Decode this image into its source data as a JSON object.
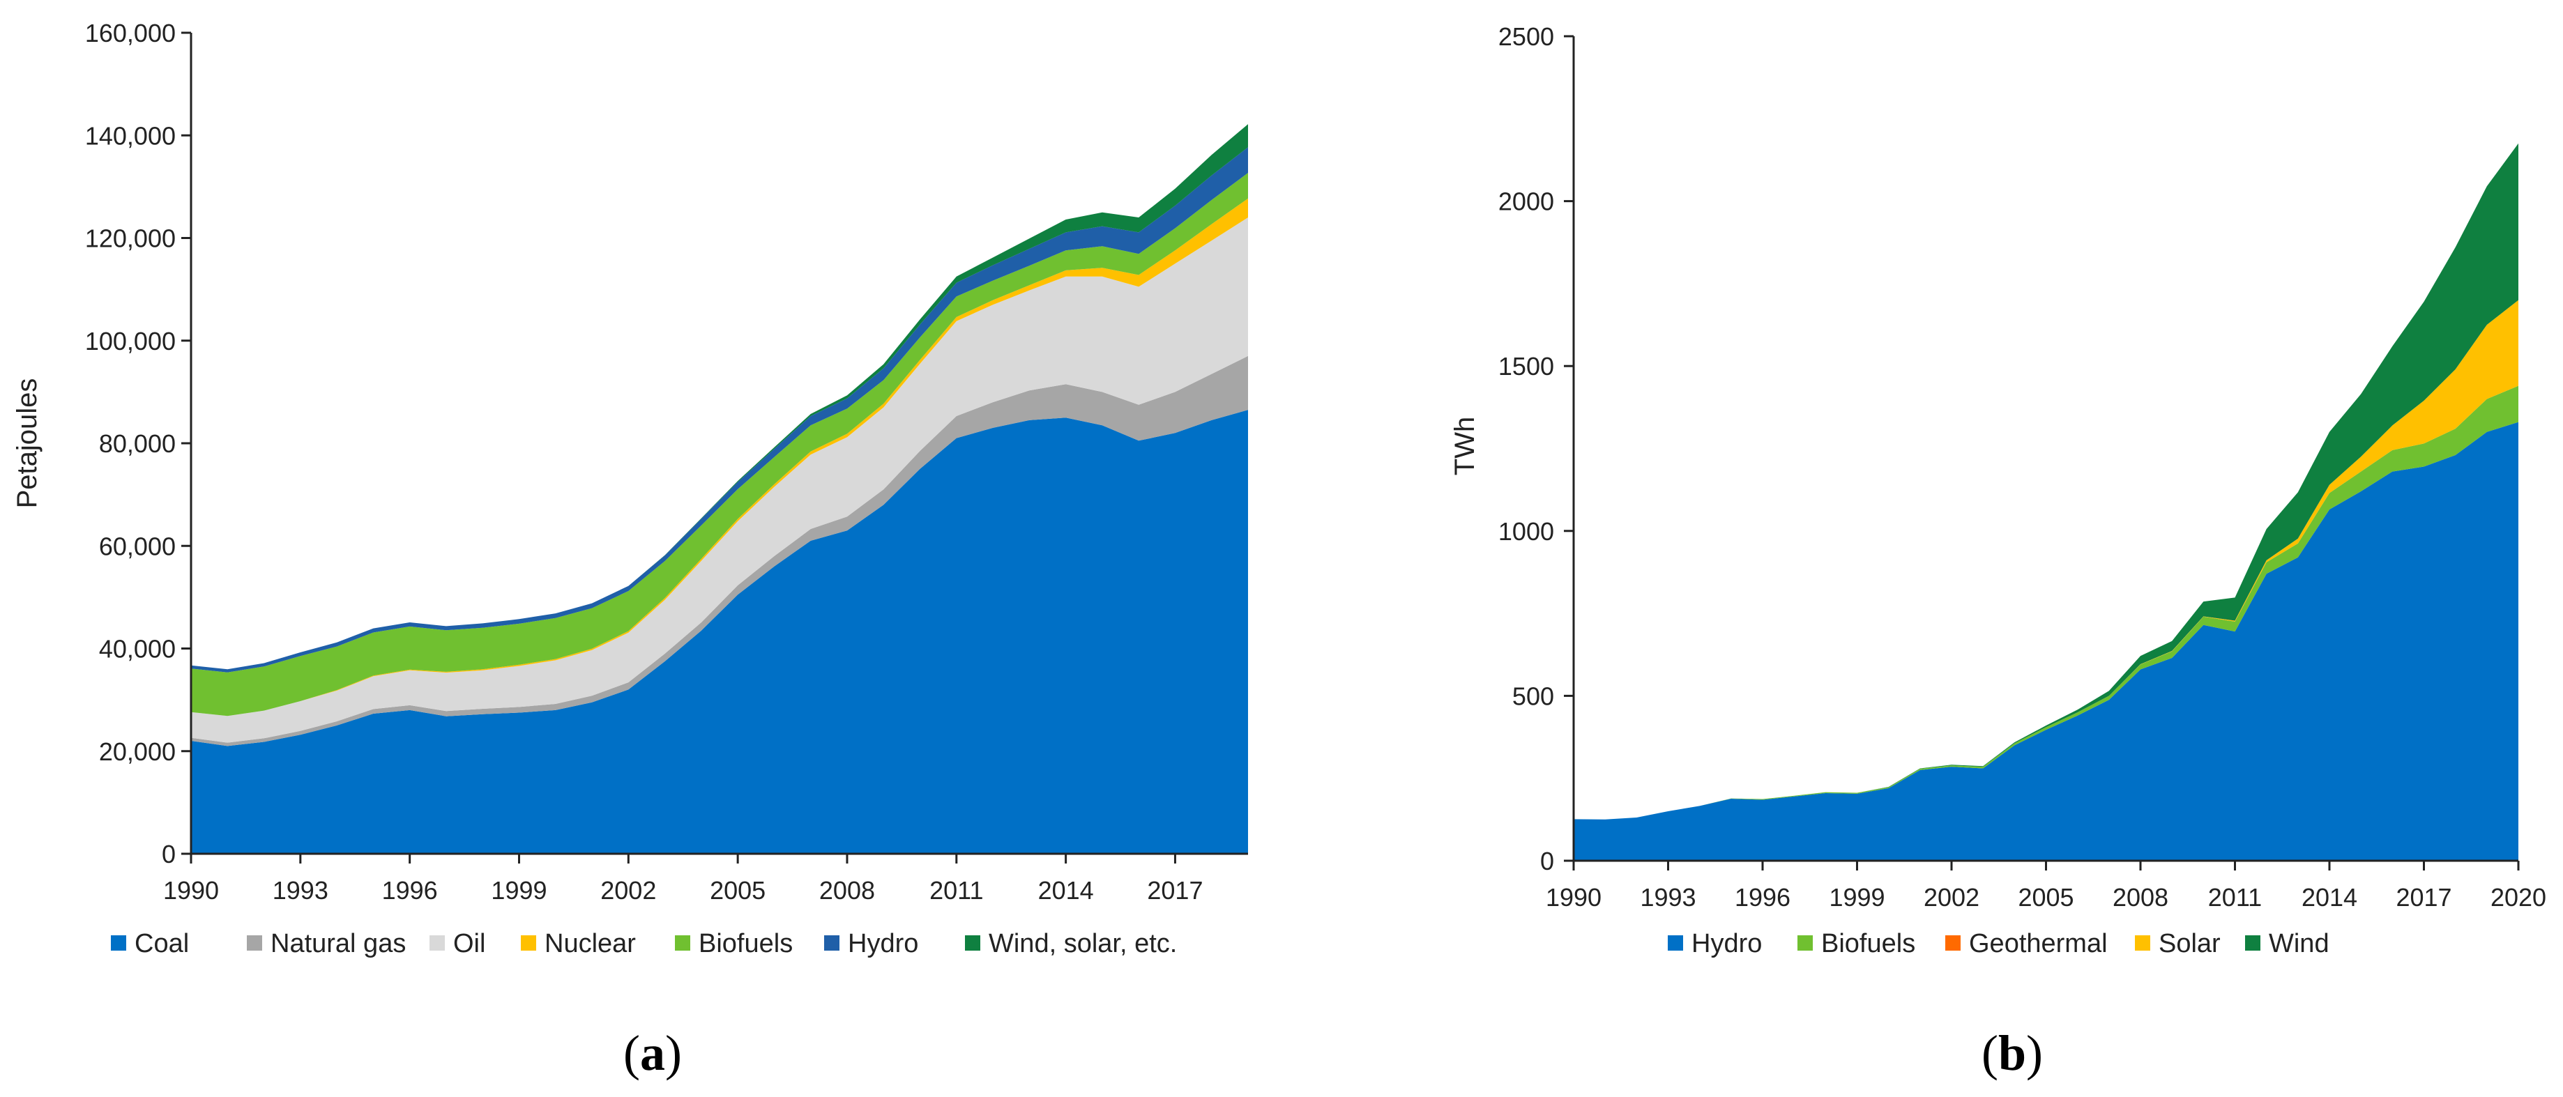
{
  "chart_data": [
    {
      "type": "area",
      "stacked": true,
      "panel_label_open": "(",
      "panel_label_letter": "a",
      "panel_label_close": ")",
      "title": "",
      "xlabel": "",
      "ylabel": "Petajoules",
      "xlim": [
        1990,
        2019
      ],
      "ylim": [
        0,
        160000
      ],
      "x_ticks": [
        1990,
        1993,
        1996,
        1999,
        2002,
        2005,
        2008,
        2011,
        2014,
        2017
      ],
      "y_ticks": [
        0,
        20000,
        40000,
        60000,
        80000,
        100000,
        120000,
        140000,
        160000
      ],
      "y_tick_labels": [
        "0",
        "20,000",
        "40,000",
        "60,000",
        "80,000",
        "100,000",
        "120,000",
        "140,000",
        "160,000"
      ],
      "legend_position": "bottom",
      "x": [
        1990,
        1991,
        1992,
        1993,
        1994,
        1995,
        1996,
        1997,
        1998,
        1999,
        2000,
        2001,
        2002,
        2003,
        2004,
        2005,
        2006,
        2007,
        2008,
        2009,
        2010,
        2011,
        2012,
        2013,
        2014,
        2015,
        2016,
        2017,
        2018,
        2019
      ],
      "series": [
        {
          "name": "Coal",
          "color": "#0070c6",
          "values": [
            22000,
            21000,
            21800,
            23200,
            25000,
            27300,
            28000,
            26800,
            27200,
            27500,
            28000,
            29500,
            32000,
            37500,
            43500,
            50500,
            56000,
            61000,
            63000,
            68000,
            75000,
            81000,
            83000,
            84500,
            85000,
            83500,
            80500,
            82000,
            84500,
            86500
          ]
        },
        {
          "name": "Natural gas",
          "color": "#a6a6a6",
          "values": [
            600,
            650,
            700,
            750,
            800,
            900,
            950,
            1000,
            1050,
            1100,
            1200,
            1300,
            1400,
            1500,
            1600,
            1800,
            2000,
            2300,
            2700,
            3000,
            3500,
            4300,
            5000,
            5800,
            6500,
            6500,
            7000,
            8000,
            9000,
            10500
          ]
        },
        {
          "name": "Oil",
          "color": "#d9d9d9",
          "values": [
            5000,
            5200,
            5400,
            5800,
            6000,
            6400,
            6800,
            7500,
            7500,
            8000,
            8500,
            8900,
            9700,
            10500,
            12000,
            12500,
            13500,
            14500,
            15500,
            16000,
            17000,
            18500,
            19000,
            19500,
            21000,
            22500,
            23000,
            25000,
            26000,
            27000
          ]
        },
        {
          "name": "Nuclear",
          "color": "#ffc000",
          "values": [
            0,
            0,
            0,
            0,
            100,
            120,
            140,
            160,
            200,
            230,
            250,
            270,
            300,
            350,
            400,
            450,
            500,
            600,
            650,
            700,
            750,
            800,
            900,
            1000,
            1200,
            1700,
            2300,
            2600,
            3200,
            3700
          ]
        },
        {
          "name": "Biofuels",
          "color": "#70c030",
          "values": [
            8500,
            8500,
            8600,
            8800,
            8500,
            8400,
            8400,
            8100,
            8100,
            8000,
            8000,
            7900,
            7800,
            7200,
            6500,
            5800,
            5300,
            5100,
            4900,
            4600,
            4400,
            4000,
            3800,
            3800,
            3900,
            4200,
            4100,
            4300,
            4700,
            5000
          ]
        },
        {
          "name": "Hydro",
          "color": "#1f5fa8",
          "values": [
            600,
            600,
            650,
            700,
            800,
            800,
            800,
            800,
            850,
            900,
            900,
            950,
            1000,
            1100,
            1300,
            1400,
            1600,
            1800,
            2000,
            2300,
            2500,
            2700,
            3000,
            3300,
            3500,
            3900,
            4200,
            4400,
            4800,
            5000
          ]
        },
        {
          "name": "Wind, solar, etc.",
          "color": "#0f8040",
          "values": [
            0,
            0,
            0,
            0,
            0,
            0,
            0,
            0,
            0,
            0,
            0,
            0,
            0,
            50,
            100,
            200,
            300,
            400,
            600,
            800,
            1000,
            1200,
            1500,
            2000,
            2500,
            2700,
            2900,
            3300,
            4000,
            4500
          ]
        }
      ]
    },
    {
      "type": "area",
      "stacked": true,
      "panel_label_open": "(",
      "panel_label_letter": "b",
      "panel_label_close": ")",
      "title": "",
      "xlabel": "",
      "ylabel": "TWh",
      "xlim": [
        1990,
        2020
      ],
      "ylim": [
        0,
        2500
      ],
      "x_ticks": [
        1990,
        1993,
        1996,
        1999,
        2002,
        2005,
        2008,
        2011,
        2014,
        2017,
        2020
      ],
      "y_ticks": [
        0,
        500,
        1000,
        1500,
        2000,
        2500
      ],
      "y_tick_labels": [
        "0",
        "500",
        "1000",
        "1500",
        "2000",
        "2500"
      ],
      "legend_position": "bottom",
      "x": [
        1990,
        1991,
        1992,
        1993,
        1994,
        1995,
        1996,
        1997,
        1998,
        1999,
        2000,
        2001,
        2002,
        2003,
        2004,
        2005,
        2006,
        2007,
        2008,
        2009,
        2010,
        2011,
        2012,
        2013,
        2014,
        2015,
        2016,
        2017,
        2018,
        2019,
        2020
      ],
      "series": [
        {
          "name": "Hydro",
          "color": "#0070c6",
          "values": [
            126,
            125,
            131,
            150,
            166,
            188,
            185,
            195,
            205,
            203,
            220,
            275,
            285,
            280,
            350,
            397,
            440,
            488,
            580,
            615,
            715,
            695,
            870,
            920,
            1065,
            1120,
            1180,
            1195,
            1230,
            1300,
            1330
          ]
        },
        {
          "name": "Biofuels",
          "color": "#70c030",
          "values": [
            0,
            0,
            0,
            0,
            0,
            1,
            2,
            2,
            3,
            3,
            3,
            4,
            4,
            5,
            6,
            8,
            10,
            12,
            15,
            20,
            25,
            30,
            35,
            42,
            50,
            60,
            65,
            70,
            80,
            100,
            110
          ]
        },
        {
          "name": "Geothermal",
          "color": "#ff6a00",
          "values": [
            0,
            0,
            0,
            0,
            0,
            0,
            0,
            0,
            0,
            0,
            0,
            0,
            0,
            0,
            0,
            0,
            0,
            0,
            0,
            0,
            0,
            0,
            0,
            0,
            0,
            0,
            0,
            0,
            0,
            0,
            0
          ]
        },
        {
          "name": "Solar",
          "color": "#ffc000",
          "values": [
            0,
            0,
            0,
            0,
            0,
            0,
            0,
            0,
            0,
            0,
            0,
            0,
            0,
            0,
            0,
            0,
            0,
            0,
            1,
            1,
            1,
            3,
            6,
            15,
            25,
            45,
            75,
            130,
            180,
            225,
            260
          ]
        },
        {
          "name": "Wind",
          "color": "#0f8040",
          "values": [
            0,
            0,
            0,
            0,
            0,
            0,
            0,
            0,
            0,
            0,
            1,
            1,
            2,
            2,
            3,
            5,
            8,
            15,
            25,
            30,
            45,
            70,
            95,
            140,
            160,
            190,
            240,
            300,
            370,
            420,
            475
          ]
        }
      ]
    }
  ]
}
